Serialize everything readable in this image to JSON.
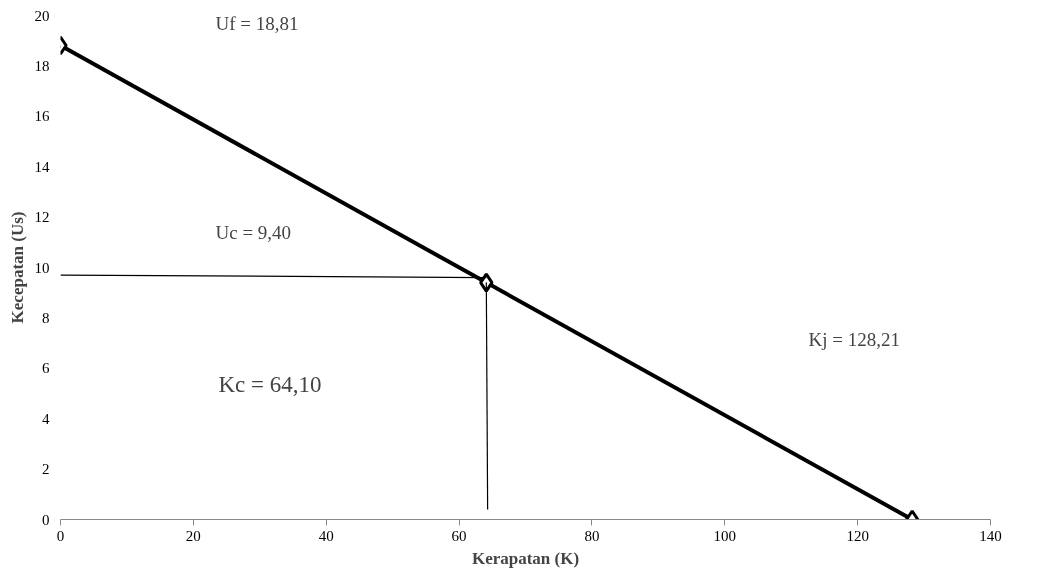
{
  "chart_data": {
    "type": "line",
    "xlabel": "Kerapatan (K)",
    "ylabel": "Kecepatan (Us)",
    "series": [
      {
        "color": "#000000",
        "x": [
          0,
          64.1,
          128.21
        ],
        "values": [
          18.81,
          9.4,
          0
        ],
        "marker": "diamond"
      },
      {
        "color": "#000000",
        "x": [
          0,
          64.1
        ],
        "values": [
          9.7,
          9.6
        ],
        "marker": "none"
      },
      {
        "color": "#000000",
        "x": [
          64.1,
          64.3
        ],
        "values": [
          9.4,
          0.4
        ],
        "marker": "none"
      }
    ],
    "xlim": [
      0,
      140
    ],
    "xticks": [
      0,
      20,
      40,
      60,
      80,
      100,
      120,
      140
    ],
    "ylim": [
      0,
      20
    ],
    "yticks": [
      0,
      2,
      4,
      6,
      8,
      10,
      12,
      14,
      16,
      18,
      20
    ],
    "grid": false,
    "annotations": [
      "Uf = 18,81",
      "Uc = 9,40",
      "Kc = 64,10",
      "Kj = 128,21"
    ]
  }
}
